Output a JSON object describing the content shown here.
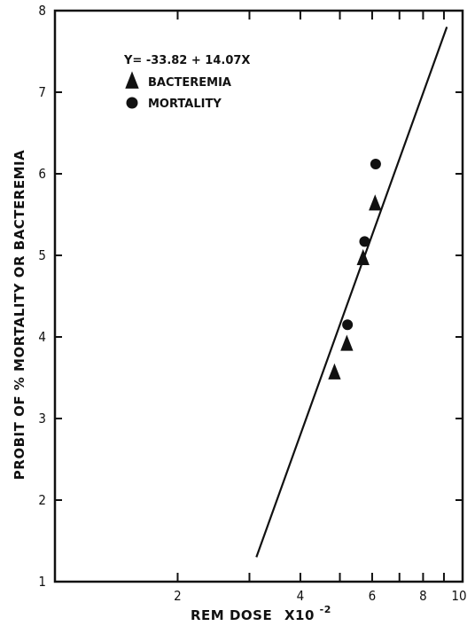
{
  "chart_data": {
    "type": "scatter",
    "title": "",
    "xlabel": "REM DOSE",
    "xlabel_multiplier": "X10",
    "xlabel_exponent": "-2",
    "ylabel": "PROBIT OF % MORTALITY OR BACTEREMIA",
    "x_scale": "log",
    "xlim": [
      1,
      10
    ],
    "ylim": [
      1,
      8
    ],
    "x_ticks": [
      {
        "value": 2,
        "label": "2"
      },
      {
        "value": 4,
        "label": "4"
      },
      {
        "value": 6,
        "label": "6"
      },
      {
        "value": 8,
        "label": "8"
      },
      {
        "value": 10,
        "label": "10"
      }
    ],
    "x_minor_ticks": [
      3,
      5,
      7,
      9
    ],
    "y_ticks": [
      {
        "value": 1,
        "label": "1"
      },
      {
        "value": 2,
        "label": "2"
      },
      {
        "value": 3,
        "label": "3"
      },
      {
        "value": 4,
        "label": "4"
      },
      {
        "value": 5,
        "label": "5"
      },
      {
        "value": 6,
        "label": "6"
      },
      {
        "value": 7,
        "label": "7"
      },
      {
        "value": 8,
        "label": "8"
      }
    ],
    "grid": false,
    "legend_position": "top-left",
    "equation": "Y= -33.82 + 14.07X",
    "series": [
      {
        "name": "BACTEREMIA",
        "marker": "triangle",
        "points": [
          [
            4.85,
            3.55
          ],
          [
            5.2,
            3.9
          ],
          [
            5.7,
            4.95
          ],
          [
            6.1,
            5.62
          ]
        ]
      },
      {
        "name": "MORTALITY",
        "marker": "circle",
        "points": [
          [
            5.22,
            4.15
          ],
          [
            5.75,
            5.17
          ],
          [
            6.12,
            6.12
          ]
        ]
      }
    ],
    "fit_line": {
      "x": [
        3.12,
        9.15
      ],
      "y": [
        1.3,
        7.8
      ]
    }
  }
}
